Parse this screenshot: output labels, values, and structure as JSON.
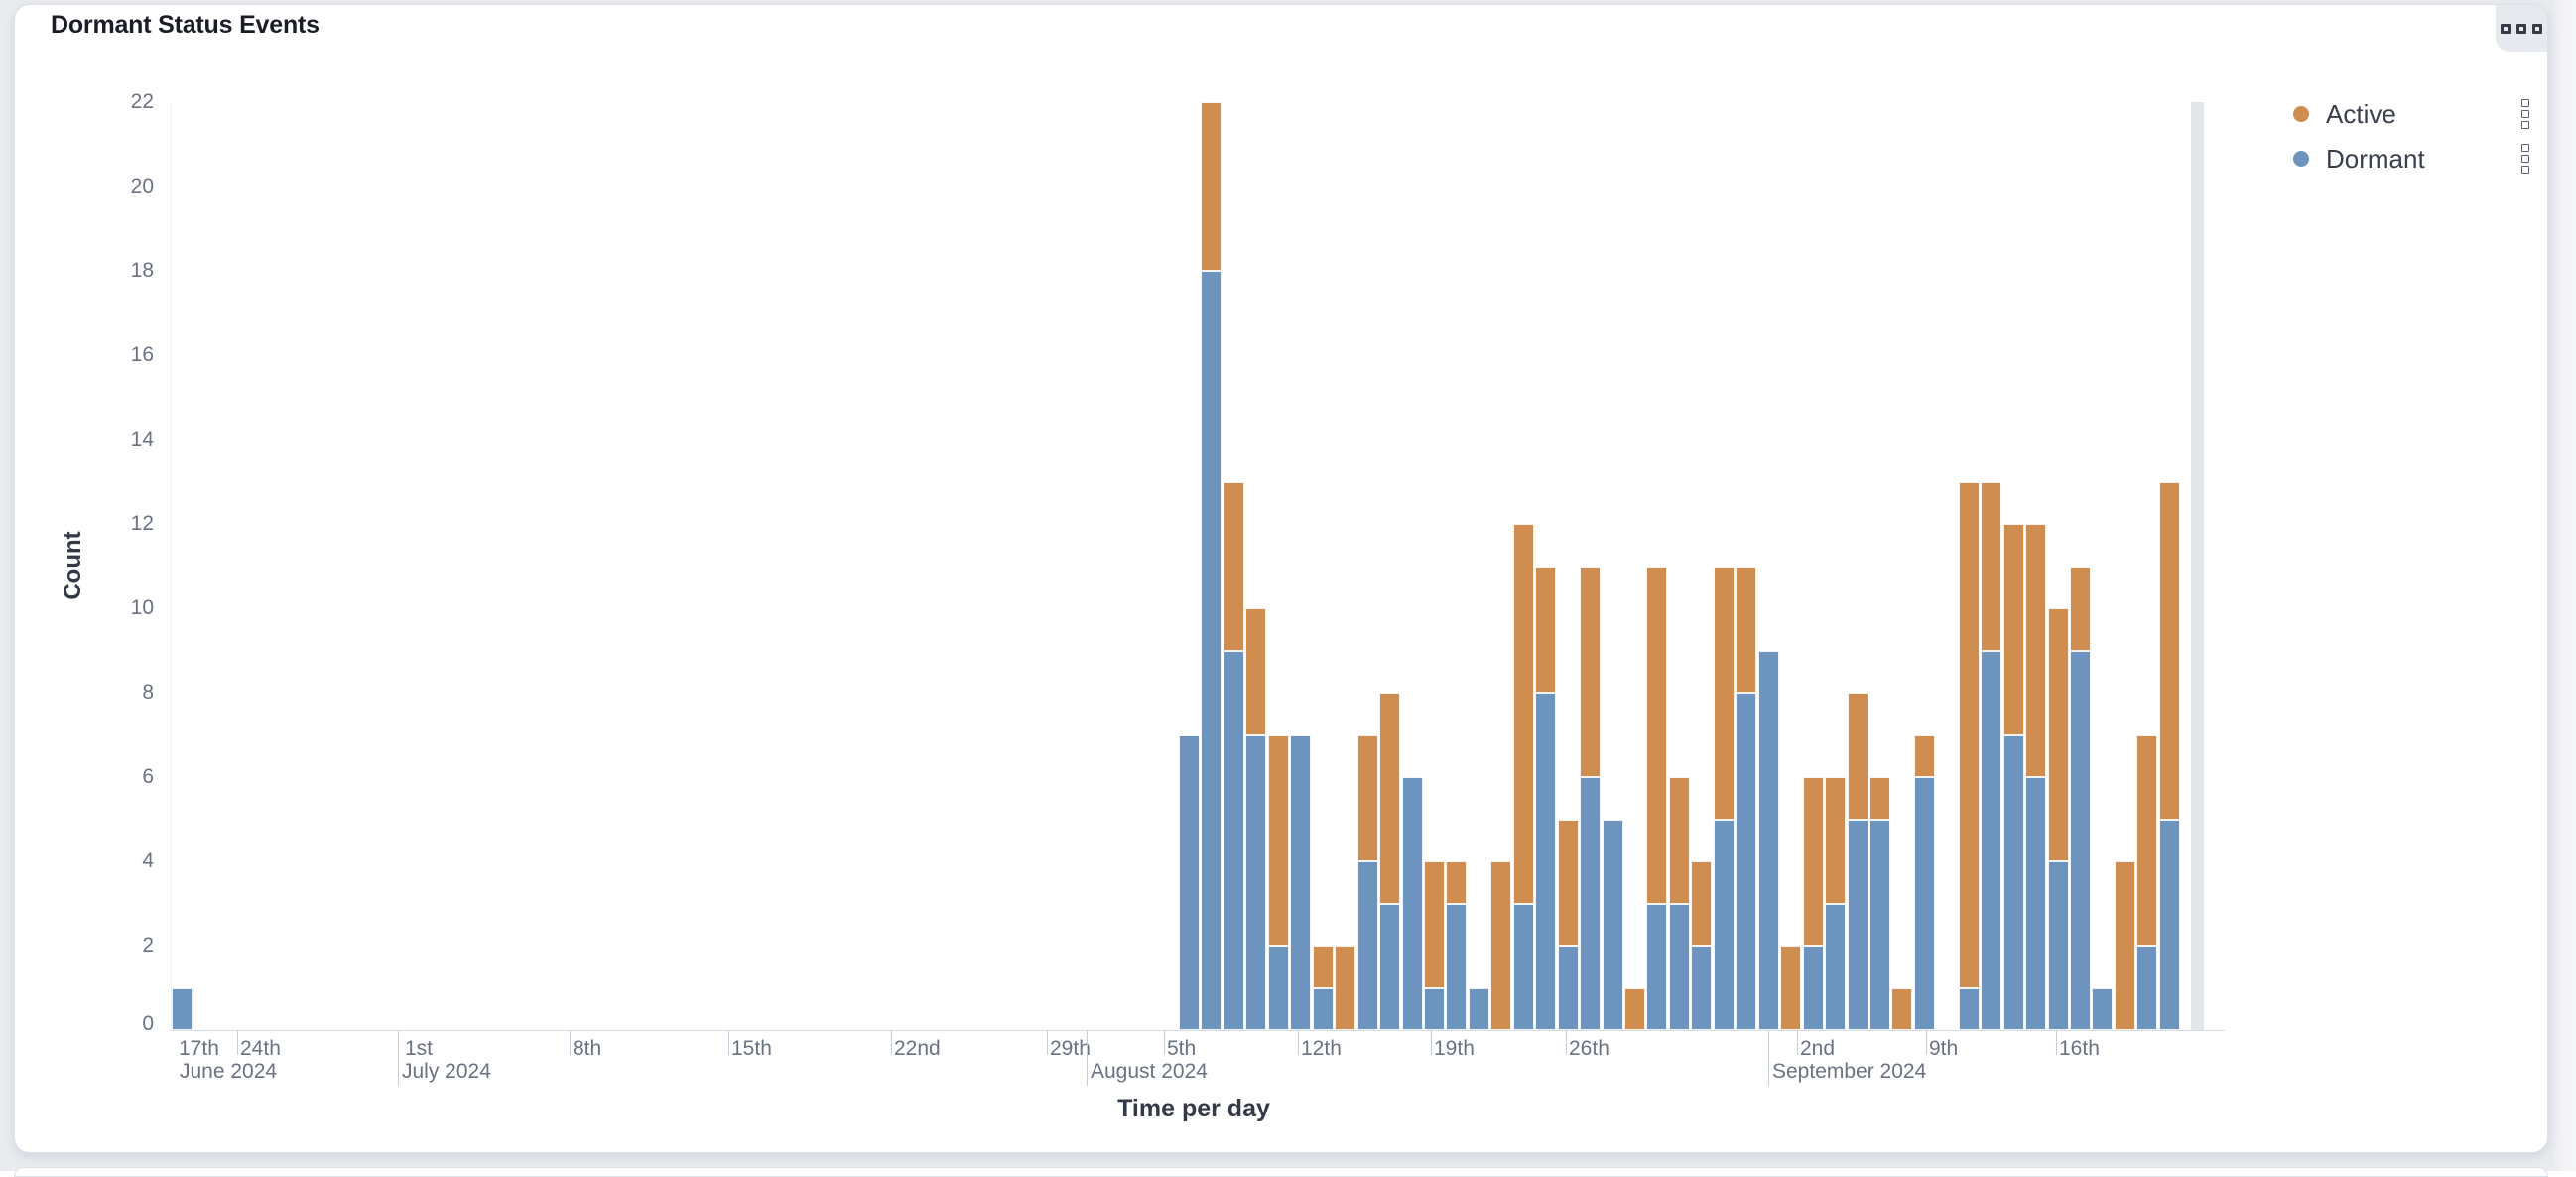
{
  "panel": {
    "title": "Dormant Status Events",
    "menu_button_icon": "panel-options-icon"
  },
  "legend": {
    "position": "top-right",
    "items": [
      {
        "label": "Active",
        "color": "#D08D50"
      },
      {
        "label": "Dormant",
        "color": "#6D93BF"
      }
    ]
  },
  "chart_data": {
    "type": "bar",
    "stacked": true,
    "orientation": "vertical",
    "xlabel": "Time per day",
    "ylabel": "Count",
    "ylim": [
      0,
      22
    ],
    "yticks": [
      0,
      2,
      4,
      6,
      8,
      10,
      12,
      14,
      16,
      18,
      20,
      22
    ],
    "grid": false,
    "legend_position": "top-right",
    "series_colors": {
      "Active": "#D08D50",
      "Dormant": "#6D93BF"
    },
    "isolated_bar": {
      "near_tick": "17th June 2024",
      "Dormant": 1,
      "Active": 0
    },
    "cluster": {
      "starts_near_tick": "5th August 2024",
      "gap_after_index": 33,
      "bars": [
        {
          "Dormant": 7,
          "Active": 0
        },
        {
          "Dormant": 18,
          "Active": 4
        },
        {
          "Dormant": 9,
          "Active": 4
        },
        {
          "Dormant": 7,
          "Active": 3
        },
        {
          "Dormant": 2,
          "Active": 5
        },
        {
          "Dormant": 7,
          "Active": 0
        },
        {
          "Dormant": 1,
          "Active": 1
        },
        {
          "Dormant": 0,
          "Active": 2
        },
        {
          "Dormant": 4,
          "Active": 3
        },
        {
          "Dormant": 3,
          "Active": 5
        },
        {
          "Dormant": 6,
          "Active": 0
        },
        {
          "Dormant": 1,
          "Active": 3
        },
        {
          "Dormant": 3,
          "Active": 1
        },
        {
          "Dormant": 1,
          "Active": 0
        },
        {
          "Dormant": 0,
          "Active": 4
        },
        {
          "Dormant": 3,
          "Active": 9
        },
        {
          "Dormant": 8,
          "Active": 3
        },
        {
          "Dormant": 2,
          "Active": 3
        },
        {
          "Dormant": 6,
          "Active": 5
        },
        {
          "Dormant": 5,
          "Active": 0
        },
        {
          "Dormant": 0,
          "Active": 1
        },
        {
          "Dormant": 3,
          "Active": 8
        },
        {
          "Dormant": 3,
          "Active": 3
        },
        {
          "Dormant": 2,
          "Active": 2
        },
        {
          "Dormant": 5,
          "Active": 6
        },
        {
          "Dormant": 8,
          "Active": 3
        },
        {
          "Dormant": 9,
          "Active": 0
        },
        {
          "Dormant": 0,
          "Active": 2
        },
        {
          "Dormant": 2,
          "Active": 4
        },
        {
          "Dormant": 3,
          "Active": 3
        },
        {
          "Dormant": 5,
          "Active": 3
        },
        {
          "Dormant": 5,
          "Active": 1
        },
        {
          "Dormant": 0,
          "Active": 1
        },
        {
          "Dormant": 6,
          "Active": 1
        },
        {
          "Dormant": 1,
          "Active": 12
        },
        {
          "Dormant": 9,
          "Active": 4
        },
        {
          "Dormant": 7,
          "Active": 5
        },
        {
          "Dormant": 6,
          "Active": 6
        },
        {
          "Dormant": 4,
          "Active": 6
        },
        {
          "Dormant": 9,
          "Active": 2
        },
        {
          "Dormant": 1,
          "Active": 0
        },
        {
          "Dormant": 0,
          "Active": 4
        },
        {
          "Dormant": 2,
          "Active": 5
        },
        {
          "Dormant": 5,
          "Active": 8
        }
      ]
    },
    "xticks": [
      {
        "label": "17th",
        "px": 162,
        "tick_line": false
      },
      {
        "label": "24th",
        "px": 224,
        "tick_line": true
      },
      {
        "label": "1st",
        "px": 390,
        "tick_line": false
      },
      {
        "label": "8th",
        "px": 559,
        "tick_line": true
      },
      {
        "label": "15th",
        "px": 719,
        "tick_line": true
      },
      {
        "label": "22nd",
        "px": 883,
        "tick_line": true
      },
      {
        "label": "29th",
        "px": 1040,
        "tick_line": true
      },
      {
        "label": "5th",
        "px": 1158,
        "tick_line": true
      },
      {
        "label": "12th",
        "px": 1293,
        "tick_line": true
      },
      {
        "label": "19th",
        "px": 1427,
        "tick_line": true
      },
      {
        "label": "26th",
        "px": 1563,
        "tick_line": true
      },
      {
        "label": "2nd",
        "px": 1796,
        "tick_line": true
      },
      {
        "label": "9th",
        "px": 1926,
        "tick_line": true
      },
      {
        "label": "16th",
        "px": 2057,
        "tick_line": true
      }
    ],
    "month_rows": [
      {
        "label": "June 2024",
        "px": 162,
        "separator_line": false
      },
      {
        "label": "July 2024",
        "px": 386,
        "separator_line": true
      },
      {
        "label": "August 2024",
        "px": 1080,
        "separator_line": true
      },
      {
        "label": "September 2024",
        "px": 1767,
        "separator_line": true
      }
    ],
    "incomplete_bucket_band": {
      "px": 2193,
      "width": 13
    }
  }
}
